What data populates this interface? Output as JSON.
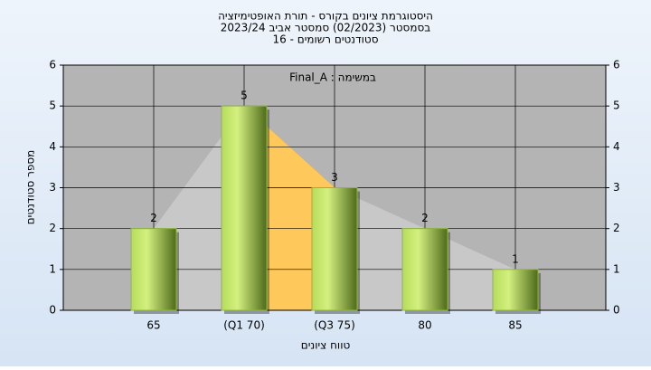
{
  "chart_data": {
    "type": "bar",
    "title": "היסטוגרמת ציונים בקורס - תורת האופטימיזציה",
    "subtitle": [
      "בסמסטר  (02/2023)  סמסטר אביב 2023/24",
      "סטודנטים רשומים - 16"
    ],
    "annotation": "Final_A : במשימה",
    "x_label": "טווח ציונים",
    "y_label": "מספר סטודנטים",
    "categories": [
      "65",
      "(Q1 70)",
      "(Q3 75)",
      "80",
      "85"
    ],
    "values": [
      2,
      5,
      3,
      2,
      1
    ],
    "ylim": [
      0,
      6
    ],
    "yticks": [
      0,
      1,
      2,
      3,
      4,
      5,
      6
    ],
    "grid": true,
    "color": "#8fb83a",
    "area_color": "#c8c8c8",
    "iqr_color": "#ffc85a"
  }
}
